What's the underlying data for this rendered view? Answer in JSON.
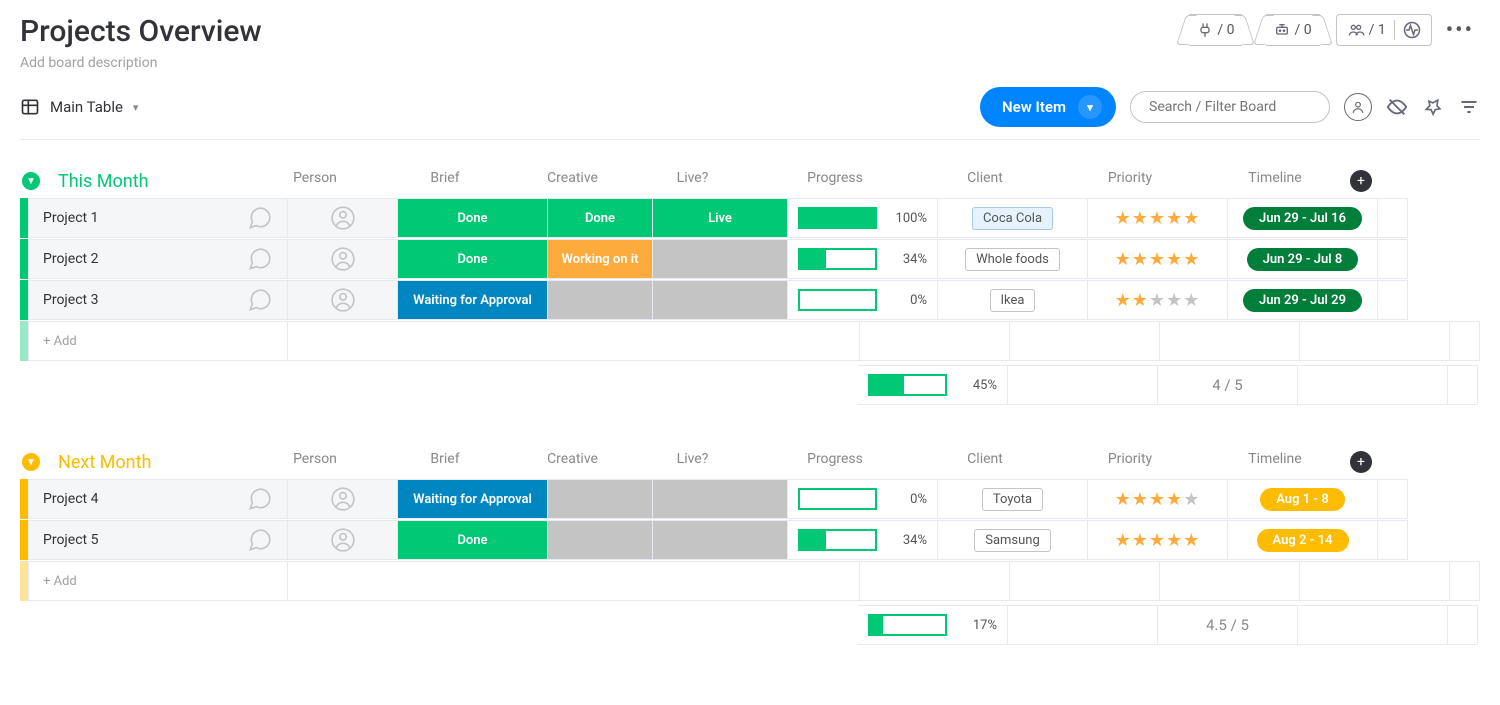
{
  "header": {
    "title": "Projects Overview",
    "description_placeholder": "Add board description",
    "automations_count": "0",
    "integrations_count": "0",
    "members_count": "1"
  },
  "toolbar": {
    "view_name": "Main Table",
    "new_item_label": "New Item",
    "search_placeholder": "Search / Filter Board"
  },
  "columns": {
    "person": "Person",
    "brief": "Brief",
    "creative": "Creative",
    "live": "Live?",
    "progress": "Progress",
    "client": "Client",
    "priority": "Priority",
    "timeline": "Timeline"
  },
  "status_colors": {
    "done": "#00c875",
    "working": "#fdab3d",
    "waiting": "#0086c0",
    "live": "#00c875",
    "blank": "#c4c4c4"
  },
  "timeline_colors": {
    "green": "#007e3a",
    "yellow": "#fdbc00"
  },
  "groups": [
    {
      "id": "this_month",
      "title": "This Month",
      "color": "#00c875",
      "add_label": "+ Add",
      "rows": [
        {
          "name": "Project 1",
          "brief": {
            "label": "Done",
            "color": "#00c875"
          },
          "creative": {
            "label": "Done",
            "color": "#00c875"
          },
          "live": {
            "label": "Live",
            "color": "#00c875"
          },
          "progress": 100,
          "client": {
            "name": "Coca Cola",
            "highlight": true
          },
          "priority_stars": 5,
          "timeline": {
            "label": "Jun 29 - Jul 16",
            "color": "#007e3a"
          }
        },
        {
          "name": "Project 2",
          "brief": {
            "label": "Done",
            "color": "#00c875"
          },
          "creative": {
            "label": "Working on it",
            "color": "#fdab3d"
          },
          "live": {
            "label": "",
            "color": "#c4c4c4"
          },
          "progress": 34,
          "client": {
            "name": "Whole foods",
            "highlight": false
          },
          "priority_stars": 5,
          "timeline": {
            "label": "Jun 29 - Jul 8",
            "color": "#007e3a"
          }
        },
        {
          "name": "Project 3",
          "brief": {
            "label": "Waiting for Approval",
            "color": "#0086c0"
          },
          "creative": {
            "label": "",
            "color": "#c4c4c4"
          },
          "live": {
            "label": "",
            "color": "#c4c4c4"
          },
          "progress": 0,
          "client": {
            "name": "Ikea",
            "highlight": false
          },
          "priority_stars": 2,
          "timeline": {
            "label": "Jun 29 - Jul 29",
            "color": "#007e3a"
          }
        }
      ],
      "summary": {
        "progress": 45,
        "priority": "4 / 5"
      }
    },
    {
      "id": "next_month",
      "title": "Next Month",
      "color": "#fdbc00",
      "add_label": "+ Add",
      "rows": [
        {
          "name": "Project 4",
          "brief": {
            "label": "Waiting for Approval",
            "color": "#0086c0"
          },
          "creative": {
            "label": "",
            "color": "#c4c4c4"
          },
          "live": {
            "label": "",
            "color": "#c4c4c4"
          },
          "progress": 0,
          "client": {
            "name": "Toyota",
            "highlight": false
          },
          "priority_stars": 4,
          "timeline": {
            "label": "Aug 1 - 8",
            "color": "#fdbc00"
          }
        },
        {
          "name": "Project 5",
          "brief": {
            "label": "Done",
            "color": "#00c875"
          },
          "creative": {
            "label": "",
            "color": "#c4c4c4"
          },
          "live": {
            "label": "",
            "color": "#c4c4c4"
          },
          "progress": 34,
          "client": {
            "name": "Samsung",
            "highlight": false
          },
          "priority_stars": 5,
          "timeline": {
            "label": "Aug 2 - 14",
            "color": "#fdbc00"
          }
        }
      ],
      "summary": {
        "progress": 17,
        "priority": "4.5 / 5"
      }
    }
  ]
}
